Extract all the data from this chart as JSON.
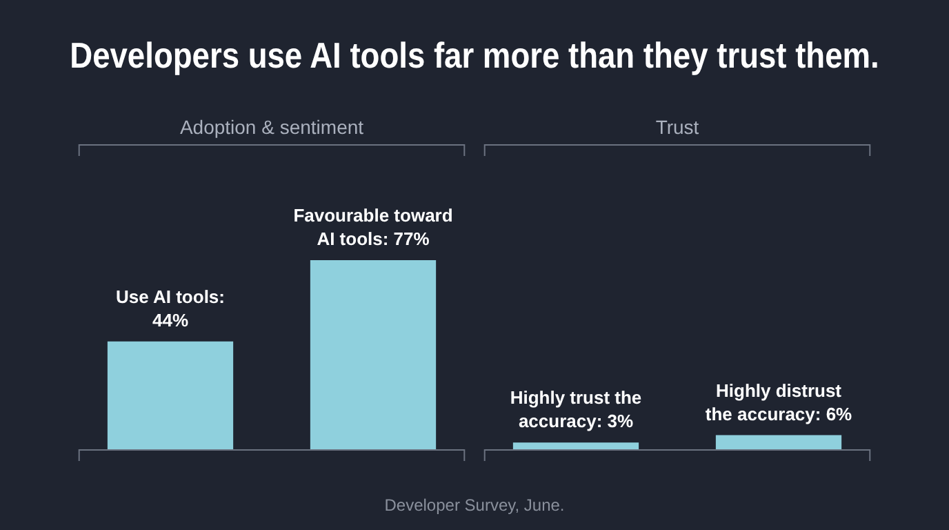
{
  "chart_data": {
    "type": "bar",
    "title": "Developers use AI tools far more than they trust them.",
    "categories": [
      null,
      null,
      null,
      null
    ],
    "values": [
      44,
      77,
      3,
      6
    ],
    "value_labels": [
      "Use AI tools:\n44%",
      "Favourable toward\nAI tools: 77%",
      "Highly trust the\naccuracy: 3%",
      "Highly distrust\nthe accuracy: 6%"
    ],
    "color": "#8fd0dd",
    "annotations": [
      "Adoption & sentiment",
      "Trust",
      "Developer Survey, June."
    ],
    "legend": false
  }
}
